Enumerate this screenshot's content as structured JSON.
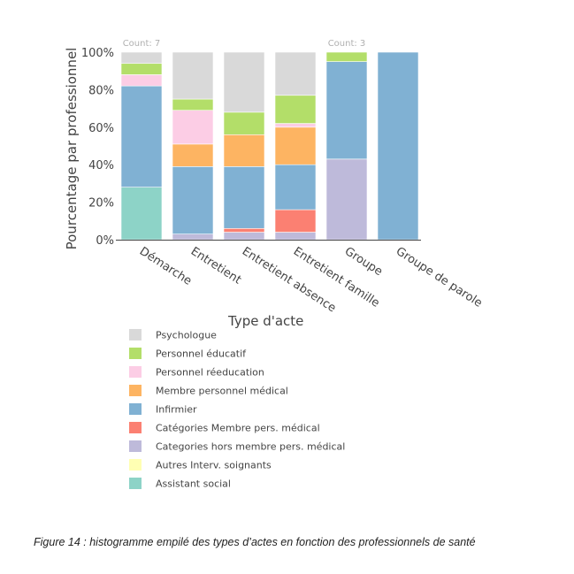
{
  "chart_data": {
    "type": "bar",
    "stacked": true,
    "ylabel": "Pourcentage par professionnel",
    "yticks": [
      "0%",
      "20%",
      "40%",
      "60%",
      "80%",
      "100%"
    ],
    "ylim": [
      0,
      100
    ],
    "categories": [
      "Démarche",
      "Entretient",
      "Entretient absence",
      "Entretient famille",
      "Groupe",
      "Groupe de parole"
    ],
    "count_labels": [
      {
        "category": "Démarche",
        "text": "Count: 7"
      },
      {
        "category": "Groupe",
        "text": "Count: 3"
      }
    ],
    "legend_title": "Type d'acte",
    "series": [
      {
        "name": "Assistant social",
        "color": "#8dd3c7",
        "values": [
          28,
          0,
          0,
          0,
          0,
          0
        ]
      },
      {
        "name": "Autres Interv. soignants",
        "color": "#ffffb3",
        "values": [
          0,
          0,
          0,
          0,
          0,
          0
        ]
      },
      {
        "name": "Categories hors membre pers. médical",
        "color": "#bebada",
        "values": [
          0,
          3,
          4,
          4,
          43,
          0
        ]
      },
      {
        "name": "Catégories Membre pers. médical",
        "color": "#fb8072",
        "values": [
          0,
          0,
          2,
          12,
          0,
          0
        ]
      },
      {
        "name": "Infirmier",
        "color": "#80b1d3",
        "values": [
          54,
          36,
          33,
          24,
          52,
          100
        ]
      },
      {
        "name": "Membre personnel médical",
        "color": "#fdb462",
        "values": [
          0,
          12,
          17,
          20,
          0,
          0
        ]
      },
      {
        "name": "Personnel réeducation",
        "color": "#fccde5",
        "values": [
          6,
          18,
          0,
          2,
          0,
          0
        ]
      },
      {
        "name": "Personnel éducatif",
        "color": "#b3de69",
        "values": [
          6,
          6,
          12,
          15,
          5,
          0
        ]
      },
      {
        "name": "Psychologue",
        "color": "#d9d9d9",
        "values": [
          6,
          25,
          32,
          23,
          0,
          0
        ]
      }
    ],
    "legend_order": [
      "Psychologue",
      "Personnel éducatif",
      "Personnel réeducation",
      "Membre personnel médical",
      "Infirmier",
      "Catégories Membre pers. médical",
      "Categories hors membre pers. médical",
      "Autres Interv. soignants",
      "Assistant social"
    ],
    "grid": false,
    "legend_position": "bottom"
  },
  "caption": "Figure 14 : histogramme empilé des types d’actes en fonction des professionnels de santé"
}
